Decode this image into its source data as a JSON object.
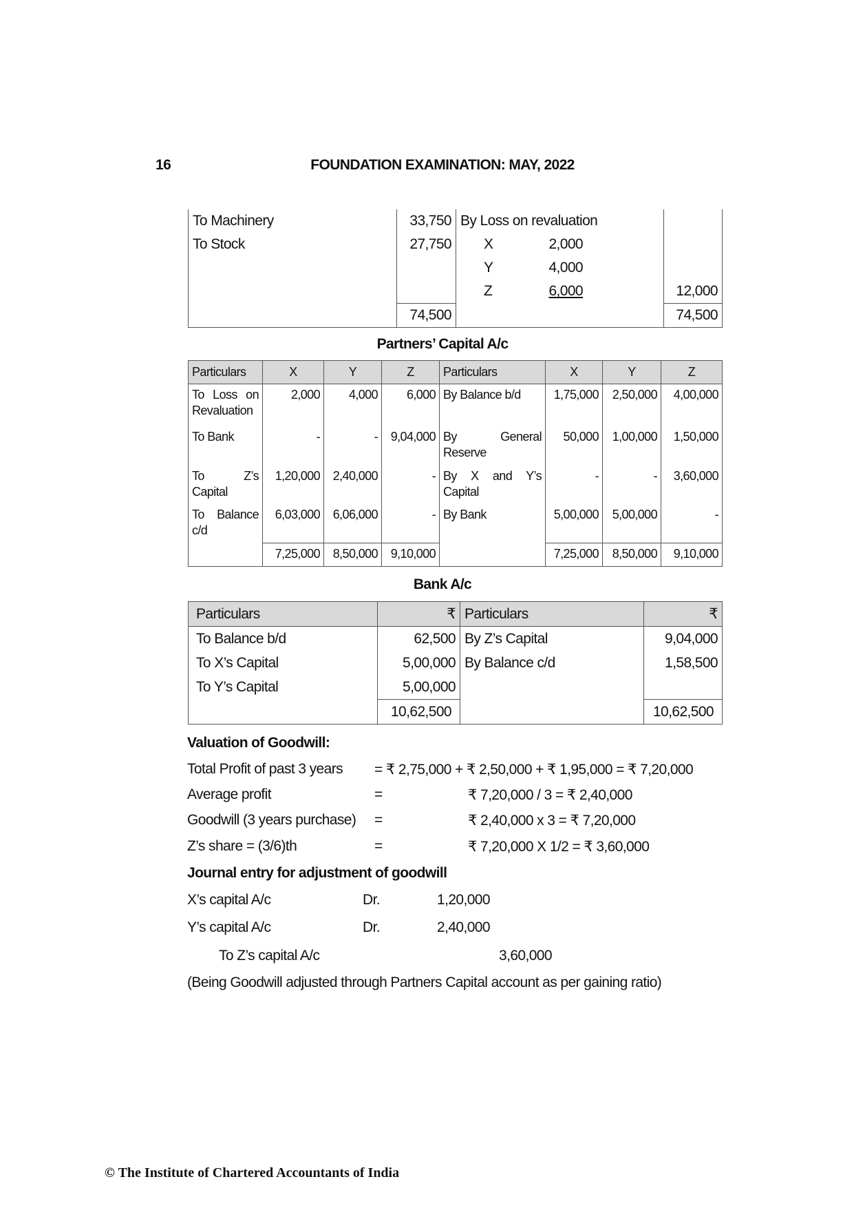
{
  "header": {
    "page_number": "16",
    "title": "FOUNDATION EXAMINATION: MAY, 2022"
  },
  "revaluation": {
    "rows": [
      {
        "dr": "To Machinery",
        "dr_amt": "33,750",
        "cr": "By Loss on revaluation",
        "cr_partner": "",
        "cr_sub": "",
        "cr_amt": ""
      },
      {
        "dr": "To Stock",
        "dr_amt": "27,750",
        "cr": "",
        "cr_partner": "X",
        "cr_sub": "2,000",
        "cr_amt": ""
      },
      {
        "dr": "",
        "dr_amt": "",
        "cr": "",
        "cr_partner": "Y",
        "cr_sub": "4,000",
        "cr_amt": ""
      },
      {
        "dr": "",
        "dr_amt": "",
        "cr": "",
        "cr_partner": "Z",
        "cr_sub": "6,000",
        "cr_amt": "12,000"
      }
    ],
    "total_dr": "74,500",
    "total_cr": "74,500"
  },
  "capital": {
    "title": "Partners’ Capital A/c",
    "headers": [
      "Particulars",
      "X",
      "Y",
      "Z",
      "Particulars",
      "X",
      "Y",
      "Z"
    ],
    "rows": [
      [
        "To Loss on Revaluation",
        "2,000",
        "4,000",
        "6,000",
        "By Balance b/d",
        "1,75,000",
        "2,50,000",
        "4,00,000"
      ],
      [
        "To Bank",
        "-",
        "-",
        "9,04,000",
        "By General Reserve",
        "50,000",
        "1,00,000",
        "1,50,000"
      ],
      [
        "To Z’s Capital",
        "1,20,000",
        "2,40,000",
        "-",
        "By X and Y’s Capital",
        "-",
        "-",
        "3,60,000"
      ],
      [
        "To Balance c/d",
        "6,03,000",
        "6,06,000",
        "-",
        "By Bank",
        "5,00,000",
        "5,00,000",
        "-"
      ]
    ],
    "totals": [
      "7,25,000",
      "8,50,000",
      "9,10,000",
      "7,25,000",
      "8,50,000",
      "9,10,000"
    ]
  },
  "bank": {
    "title": "Bank A/c",
    "headers": [
      "Particulars",
      "₹",
      "Particulars",
      "₹"
    ],
    "rows": [
      [
        "To Balance b/d",
        "62,500",
        "By Z’s Capital",
        "9,04,000"
      ],
      [
        "To X’s Capital",
        "5,00,000",
        "By Balance c/d",
        "1,58,500"
      ],
      [
        "To Y’s Capital",
        "5,00,000",
        "",
        ""
      ]
    ],
    "totals": [
      "10,62,500",
      "10,62,500"
    ]
  },
  "goodwill": {
    "heading": "Valuation of Goodwill:",
    "rows": [
      {
        "label": "Total Profit of past 3 years",
        "eq": "= ₹ 2,75,000 + ₹ 2,50,000 + ₹ 1,95,000 = ₹ 7,20,000",
        "value": ""
      },
      {
        "label": "Average profit",
        "eq": "=",
        "value": "₹ 7,20,000 / 3 = ₹ 2,40,000"
      },
      {
        "label": "Goodwill (3 years purchase)",
        "eq": "=",
        "value": "₹ 2,40,000 x 3 = ₹ 7,20,000"
      },
      {
        "label": "Z’s share = (3/6)th",
        "eq": "=",
        "value": "₹ 7,20,000 X 1/2 = ₹ 3,60,000"
      }
    ]
  },
  "journal": {
    "heading": "Journal entry for adjustment of goodwill",
    "dr1": {
      "account": "X’s capital A/c",
      "dr": "Dr.",
      "amount": "1,20,000"
    },
    "dr2": {
      "account": "Y’s capital A/c",
      "dr": "Dr.",
      "amount": "2,40,000"
    },
    "cr": {
      "account": "To Z’s capital A/c",
      "amount": "3,60,000"
    },
    "narration": "(Being Goodwill adjusted through Partners Capital account as per gaining ratio)"
  },
  "footer": {
    "copyright": "© The Institute of Chartered Accountants of India"
  }
}
